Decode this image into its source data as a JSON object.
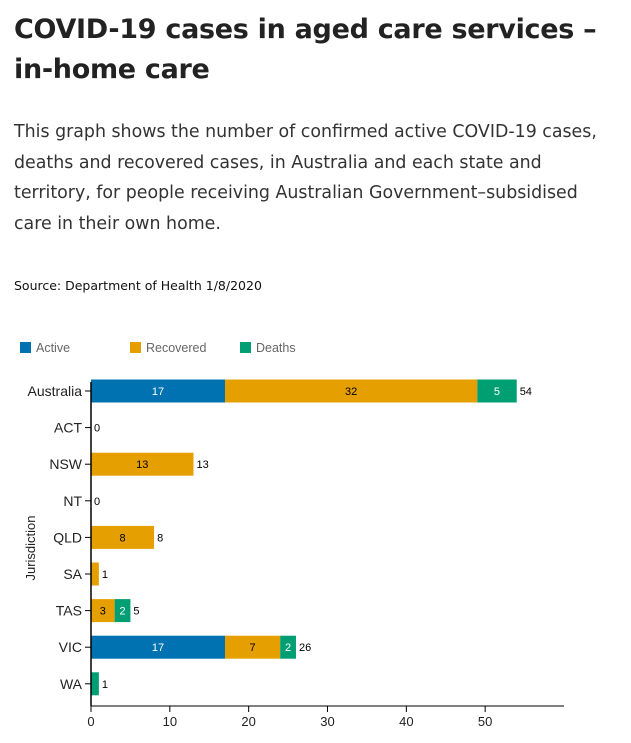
{
  "page": {
    "title": "COVID-19 cases in aged care services – in-home care",
    "description": "This graph shows the number of confirmed active COVID-19 cases, deaths and recovered cases, in Australia and each state and territory, for people receiving Australian Government–subsidised care in their own home.",
    "source": "Source: Department of Health 1/8/2020"
  },
  "colors": {
    "active": "#0072b2",
    "recovered": "#e69f00",
    "deaths": "#009e73",
    "legend_text": "#666666",
    "axis": "#000000"
  },
  "chart_data": {
    "type": "bar",
    "orientation": "horizontal",
    "stacked": true,
    "categories": [
      "Australia",
      "ACT",
      "NSW",
      "NT",
      "QLD",
      "SA",
      "TAS",
      "VIC",
      "WA"
    ],
    "series": [
      {
        "name": "Active",
        "key": "active",
        "values": [
          17,
          0,
          0,
          0,
          0,
          0,
          0,
          17,
          0
        ]
      },
      {
        "name": "Recovered",
        "key": "recovered",
        "values": [
          32,
          0,
          13,
          0,
          8,
          1,
          3,
          7,
          0
        ]
      },
      {
        "name": "Deaths",
        "key": "deaths",
        "values": [
          5,
          0,
          0,
          0,
          0,
          0,
          2,
          2,
          1
        ]
      }
    ],
    "totals": [
      54,
      0,
      13,
      0,
      8,
      1,
      5,
      26,
      1
    ],
    "xlabel": "",
    "ylabel": "Jurisdiction",
    "xlim": [
      0,
      60
    ],
    "xticks": [
      0,
      10,
      20,
      30,
      40,
      50
    ],
    "legend": "top-left",
    "grid": false
  }
}
